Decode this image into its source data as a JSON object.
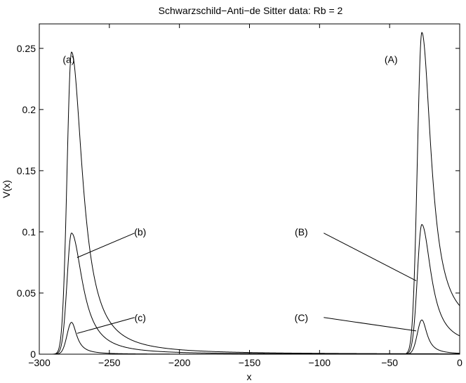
{
  "chart_data": {
    "type": "line",
    "title": "Schwarzschild−Anti−de Sitter data: Rb = 2",
    "xlabel": "x",
    "ylabel": "V(x)",
    "xlim": [
      -300,
      0
    ],
    "ylim": [
      0,
      0.27
    ],
    "xticks": [
      -300,
      -250,
      -200,
      -150,
      -100,
      -50,
      0
    ],
    "xtick_labels": [
      "−300",
      "−250",
      "−200",
      "−150",
      "−100",
      "−50",
      "0"
    ],
    "yticks": [
      0,
      0.05,
      0.1,
      0.15,
      0.2,
      0.25
    ],
    "ytick_labels": [
      "0",
      "0.05",
      "0.1",
      "0.15",
      "0.2",
      "0.25"
    ],
    "grid": false,
    "legend": "none",
    "line_color": "#000000",
    "series": [
      {
        "peak_x": -277,
        "peak_y": 0.247,
        "left_width": 3.2,
        "right_decay": 9.5,
        "tail_value": 0.0
      },
      {
        "peak_x": -277,
        "peak_y": 0.099,
        "left_width": 3.2,
        "right_decay": 9.5,
        "tail_value": 0.0
      },
      {
        "peak_x": -277,
        "peak_y": 0.026,
        "left_width": 3.2,
        "right_decay": 4.5,
        "tail_value": 0.0
      },
      {
        "peak_x": -27,
        "peak_y": 0.263,
        "left_width": 3.2,
        "right_decay": 8.0,
        "tail_value": 0.02
      },
      {
        "peak_x": -27,
        "peak_y": 0.106,
        "left_width": 3.2,
        "right_decay": 8.0,
        "tail_value": 0.007
      },
      {
        "peak_x": -27,
        "peak_y": 0.028,
        "left_width": 3.2,
        "right_decay": 4.5,
        "tail_value": 0.0
      }
    ],
    "annotations": [
      {
        "label": "(a)",
        "text_x": -279,
        "text_y": 0.241
      },
      {
        "label": "(b)",
        "text_x": -228,
        "text_y": 0.1,
        "line_from": [
          -232,
          0.099
        ],
        "line_to": [
          -273,
          0.079
        ]
      },
      {
        "label": "(c)",
        "text_x": -228,
        "text_y": 0.03,
        "line_from": [
          -232,
          0.03
        ],
        "line_to": [
          -273,
          0.017
        ]
      },
      {
        "label": "(A)",
        "text_x": -49,
        "text_y": 0.241
      },
      {
        "label": "(B)",
        "text_x": -113,
        "text_y": 0.1,
        "line_from": [
          -97,
          0.099
        ],
        "line_to": [
          -31,
          0.06
        ]
      },
      {
        "label": "(C)",
        "text_x": -113,
        "text_y": 0.03,
        "line_from": [
          -97,
          0.03
        ],
        "line_to": [
          -31,
          0.019
        ]
      }
    ]
  }
}
